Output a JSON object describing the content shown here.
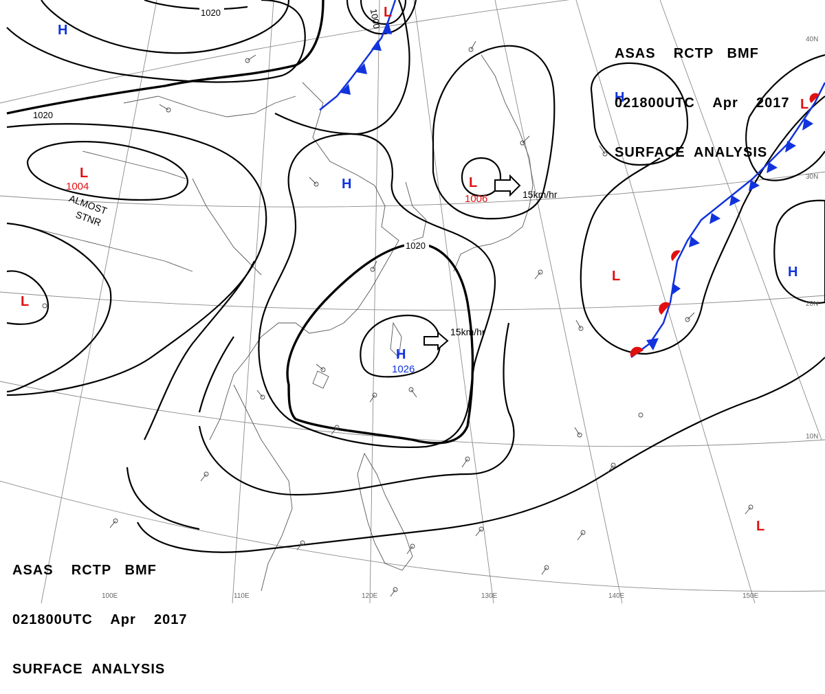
{
  "header_top": {
    "line1": "ASAS    RCTP   BMF",
    "line2": "021800UTC    Apr    2017",
    "line3": "SURFACE  ANALYSIS"
  },
  "header_bottom": {
    "line1": "ASAS    RCTP   BMF",
    "line2": "021800UTC    Apr    2017",
    "line3": "SURFACE  ANALYSIS"
  },
  "systems": [
    {
      "type": "H",
      "label": "H",
      "value": ""
    },
    {
      "type": "L",
      "label": "L",
      "value": ""
    },
    {
      "type": "L",
      "label": "L",
      "value": "1004",
      "note": [
        "ALMOST",
        "STNR"
      ]
    },
    {
      "type": "L",
      "label": "L",
      "value": ""
    },
    {
      "type": "H",
      "label": "H",
      "value": ""
    },
    {
      "type": "L",
      "label": "L",
      "value": "1006"
    },
    {
      "type": "H",
      "label": "H",
      "value": "1026"
    },
    {
      "type": "H",
      "label": "H",
      "value": ""
    },
    {
      "type": "L",
      "label": "L",
      "value": ""
    },
    {
      "type": "H",
      "label": "H",
      "value": ""
    },
    {
      "type": "L",
      "label": "L",
      "value": ""
    },
    {
      "type": "L",
      "label": "L",
      "value": ""
    }
  ],
  "motion_vectors": [
    {
      "speed": "15km/hr"
    },
    {
      "speed": "15km/hr"
    }
  ],
  "isobar_labels": [
    "1020",
    "1020",
    "1000",
    "1020"
  ],
  "grid_labels": {
    "lon": [
      "100E",
      "110E",
      "120E",
      "130E",
      "140E",
      "150E"
    ],
    "lat": [
      "40N",
      "30N",
      "20N",
      "10N"
    ]
  },
  "colors": {
    "high": "#1133dd",
    "low": "#e01010",
    "cold_front": "#1133dd",
    "warm_front": "#e01010",
    "isobar": "#000000"
  }
}
